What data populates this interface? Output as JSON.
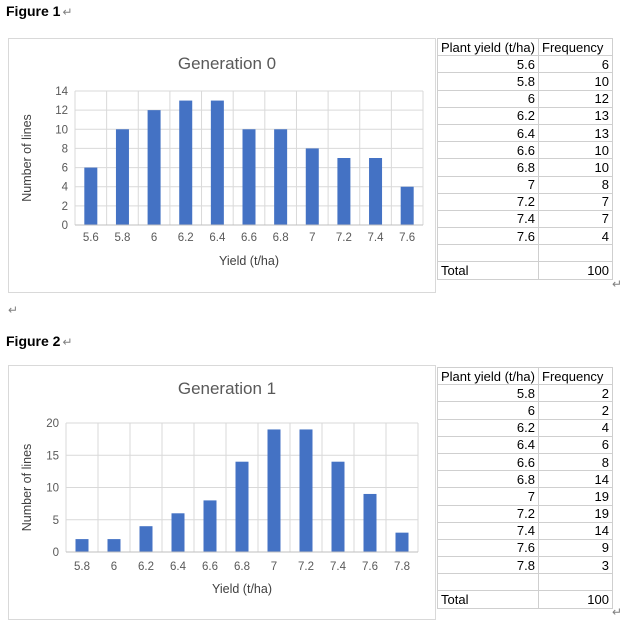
{
  "document": {
    "figure1_label": "Figure 1",
    "figure2_label": "Figure 2",
    "paragraph_mark": "↵"
  },
  "colors": {
    "bar_blue": "#4472C4",
    "gridline": "#D9D9D9",
    "axis_line": "#BFBFBF",
    "chart_text_gray": "#595959",
    "axis_label_dark": "#404040",
    "table_border": "#CFCFCF"
  },
  "chart_data": [
    {
      "type": "bar",
      "title": "Generation 0",
      "categories": [
        "5.6",
        "5.8",
        "6",
        "6.2",
        "6.4",
        "6.6",
        "6.8",
        "7",
        "7.2",
        "7.4",
        "7.6"
      ],
      "values": [
        6,
        10,
        12,
        13,
        13,
        10,
        10,
        8,
        7,
        7,
        4
      ],
      "xlabel": "Yield (t/ha)",
      "ylabel": "Number of lines",
      "ylim": [
        0,
        14
      ],
      "ytick_step": 2,
      "yticks": [
        0,
        2,
        4,
        6,
        8,
        10,
        12,
        14
      ],
      "bar_color": "#4472C4",
      "grid": true,
      "legend": "none"
    },
    {
      "type": "bar",
      "title": "Generation 1",
      "categories": [
        "5.8",
        "6",
        "6.2",
        "6.4",
        "6.6",
        "6.8",
        "7",
        "7.2",
        "7.4",
        "7.6",
        "7.8"
      ],
      "values": [
        2,
        2,
        4,
        6,
        8,
        14,
        19,
        19,
        14,
        9,
        3
      ],
      "xlabel": "Yield (t/ha)",
      "ylabel": "Number of lines",
      "ylim": [
        0,
        20
      ],
      "ytick_step": 5,
      "yticks": [
        0,
        5,
        10,
        15,
        20
      ],
      "bar_color": "#4472C4",
      "grid": true,
      "legend": "none"
    }
  ],
  "tables": [
    {
      "headers": [
        "Plant yield (t/ha)",
        "Frequency"
      ],
      "rows": [
        [
          "5.6",
          "6"
        ],
        [
          "5.8",
          "10"
        ],
        [
          "6",
          "12"
        ],
        [
          "6.2",
          "13"
        ],
        [
          "6.4",
          "13"
        ],
        [
          "6.6",
          "10"
        ],
        [
          "6.8",
          "10"
        ],
        [
          "7",
          "8"
        ],
        [
          "7.2",
          "7"
        ],
        [
          "7.4",
          "7"
        ],
        [
          "7.6",
          "4"
        ]
      ],
      "blank_row": true,
      "total_label": "Total",
      "total_value": "100"
    },
    {
      "headers": [
        "Plant yield (t/ha)",
        "Frequency"
      ],
      "rows": [
        [
          "5.8",
          "2"
        ],
        [
          "6",
          "2"
        ],
        [
          "6.2",
          "4"
        ],
        [
          "6.4",
          "6"
        ],
        [
          "6.6",
          "8"
        ],
        [
          "6.8",
          "14"
        ],
        [
          "7",
          "19"
        ],
        [
          "7.2",
          "19"
        ],
        [
          "7.4",
          "14"
        ],
        [
          "7.6",
          "9"
        ],
        [
          "7.8",
          "3"
        ]
      ],
      "blank_row": true,
      "total_label": "Total",
      "total_value": "100"
    }
  ]
}
